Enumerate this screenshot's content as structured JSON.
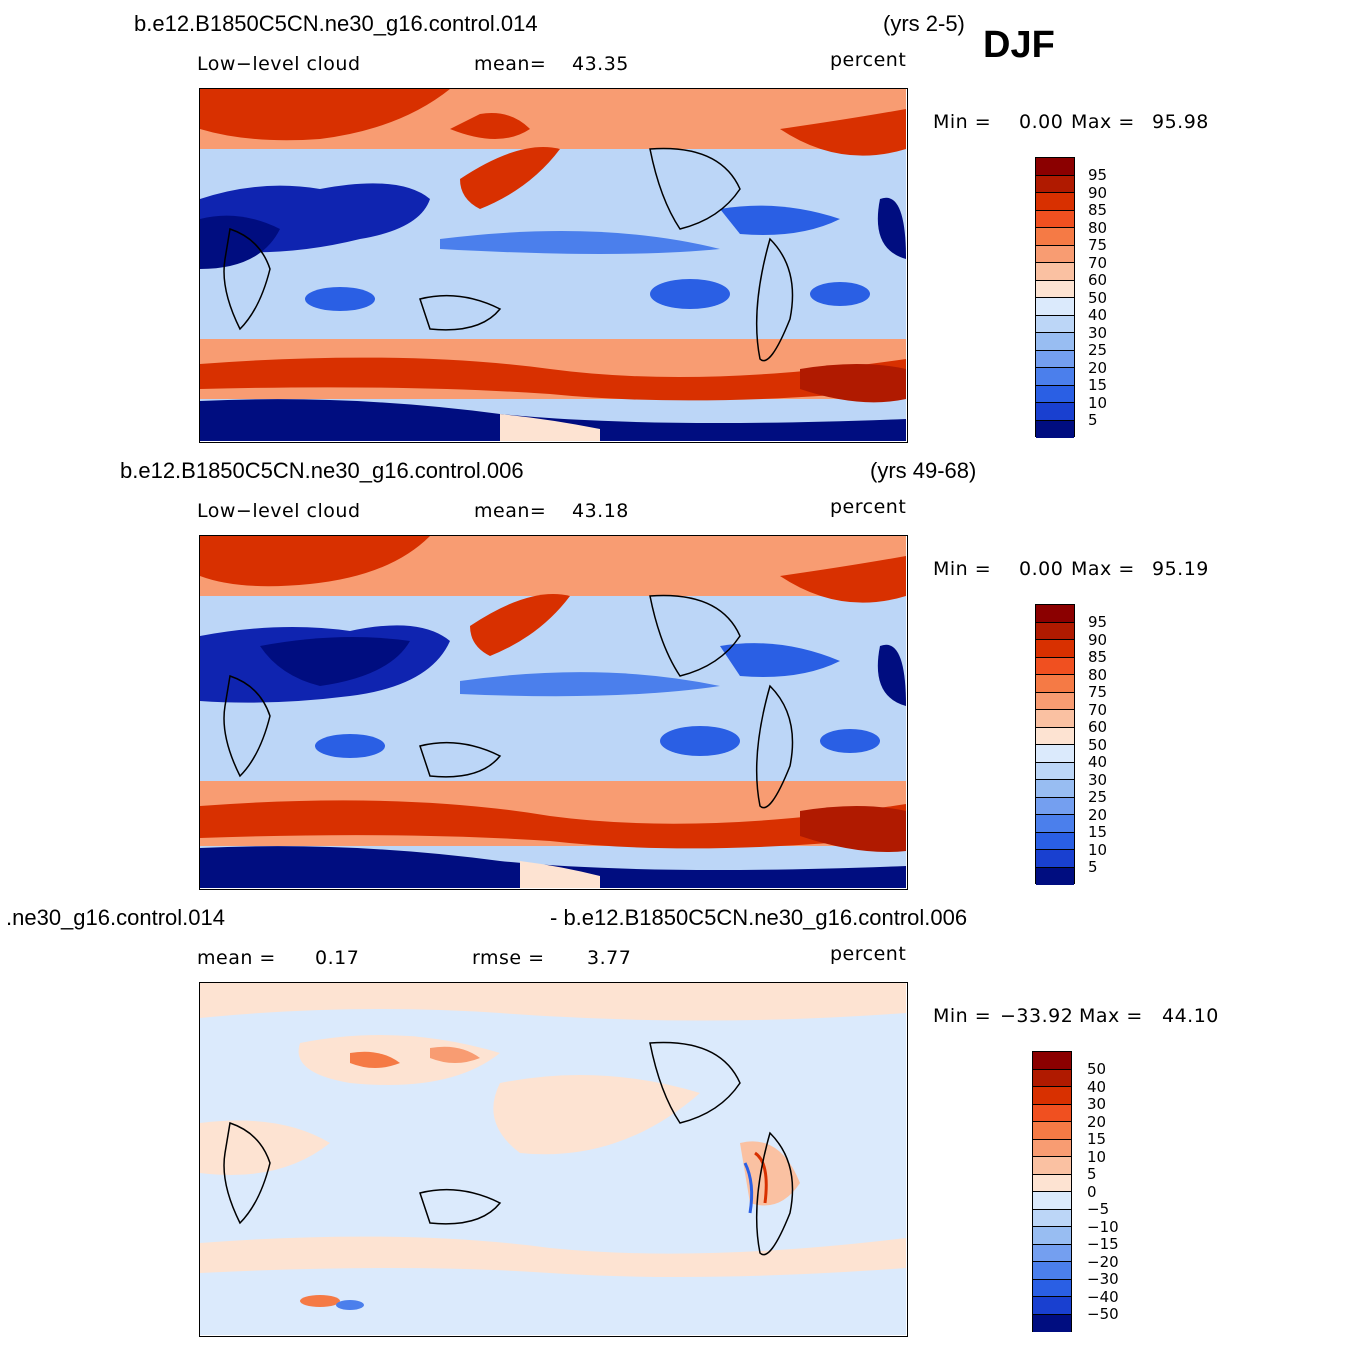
{
  "season": "DJF",
  "palette_warm": [
    "#8b0000",
    "#b01a00",
    "#d83000",
    "#f05020",
    "#f57a45",
    "#f89c72",
    "#fac1a2",
    "#fde3d2"
  ],
  "palette_cool": [
    "#dbeafc",
    "#bcd6f7",
    "#98bdf2",
    "#749ff0",
    "#4b7fec",
    "#2a5fe4",
    "#1940d0",
    "#0f24b0",
    "#000d80"
  ],
  "panels": [
    {
      "case_title": "b.e12.B1850C5CN.ne30_g16.control.014",
      "years": "(yrs 2-5)",
      "left_label": "Low−level cloud",
      "stat_label": "mean=",
      "stat_value": "43.35",
      "units": "percent",
      "min_label": "Min =",
      "min_value": "0.00",
      "max_label": "Max =",
      "max_value": "95.98",
      "colorbar_labels": [
        "95",
        "90",
        "85",
        "80",
        "75",
        "70",
        "60",
        "50",
        "40",
        "30",
        "25",
        "20",
        "15",
        "10",
        "5"
      ]
    },
    {
      "case_title": "b.e12.B1850C5CN.ne30_g16.control.006",
      "years": "(yrs 49-68)",
      "left_label": "Low−level cloud",
      "stat_label": "mean=",
      "stat_value": "43.18",
      "units": "percent",
      "min_label": "Min =",
      "min_value": "0.00",
      "max_label": "Max =",
      "max_value": "95.19",
      "colorbar_labels": [
        "95",
        "90",
        "85",
        "80",
        "75",
        "70",
        "60",
        "50",
        "40",
        "30",
        "25",
        "20",
        "15",
        "10",
        "5"
      ]
    },
    {
      "case_title_left": ".ne30_g16.control.014",
      "case_title_right": "- b.e12.B1850C5CN.ne30_g16.control.006",
      "mean_label": "mean =",
      "mean_value": "0.17",
      "rmse_label": "rmse =",
      "rmse_value": "3.77",
      "units": "percent",
      "min_label": "Min =",
      "min_value": "−33.92",
      "max_label": "Max =",
      "max_value": "44.10",
      "colorbar_labels": [
        "50",
        "40",
        "30",
        "20",
        "15",
        "10",
        "5",
        "0",
        "−5",
        "−10",
        "−15",
        "−20",
        "−30",
        "−40",
        "−50"
      ]
    }
  ]
}
